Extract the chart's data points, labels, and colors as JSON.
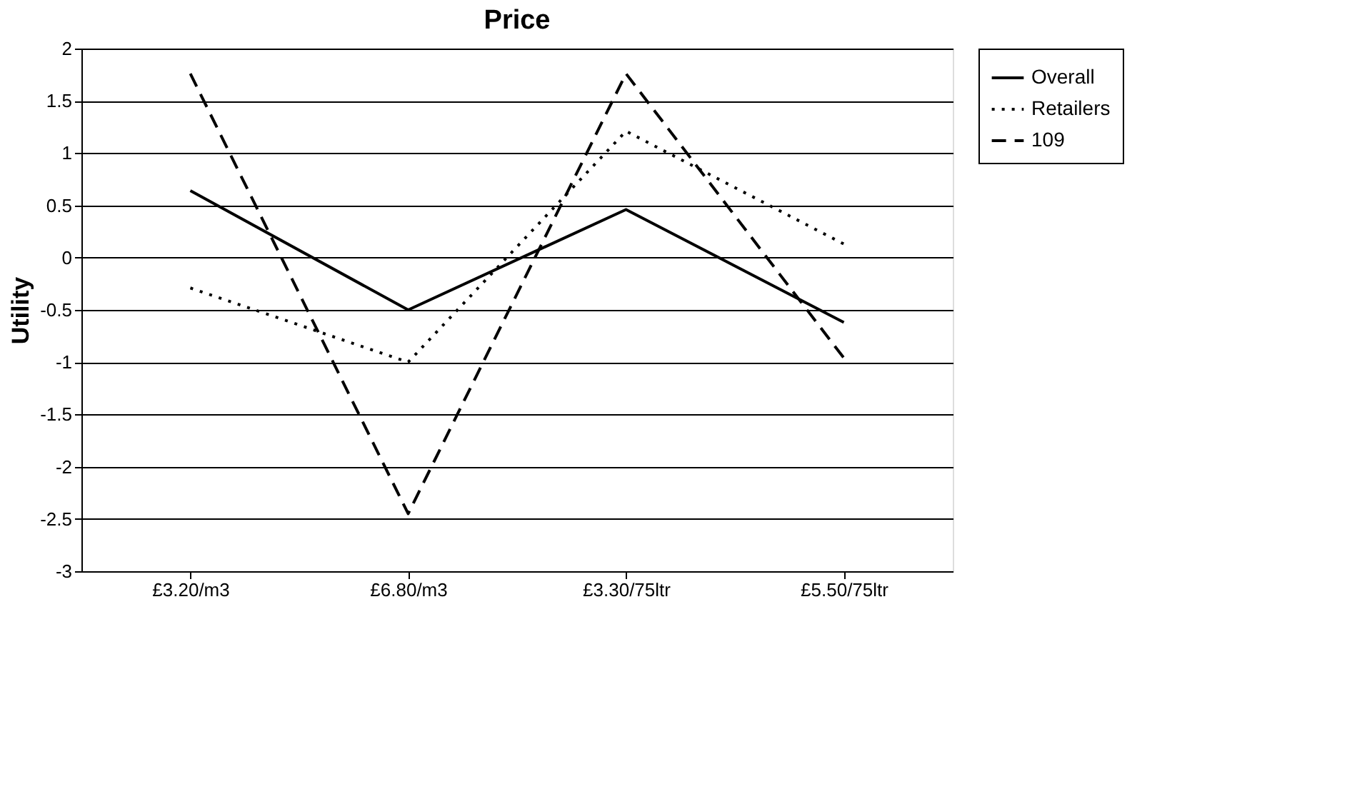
{
  "chart_data": {
    "type": "line",
    "title": "Price",
    "ylabel": "Utility",
    "categories": [
      "£3.20/m3",
      "£6.80/m3",
      "£3.30/75ltr",
      "£5.50/75ltr"
    ],
    "series": [
      {
        "name": "Overall",
        "color": "#000000",
        "line_style": "solid",
        "values": [
          0.64,
          -0.5,
          0.46,
          -0.62
        ]
      },
      {
        "name": "Retailers",
        "color": "#000000",
        "line_style": "dotted",
        "values": [
          -0.29,
          -1.0,
          1.21,
          0.13
        ]
      },
      {
        "name": "109",
        "color": "#000000",
        "line_style": "dashed",
        "values": [
          1.76,
          -2.45,
          1.76,
          -0.96
        ]
      }
    ],
    "ylim": [
      -3,
      2
    ],
    "yticks": [
      -3,
      -2.5,
      -2,
      -1.5,
      -1,
      -0.5,
      0,
      0.5,
      1,
      1.5,
      2
    ],
    "grid": "y",
    "legend": "right",
    "marker": "none"
  }
}
